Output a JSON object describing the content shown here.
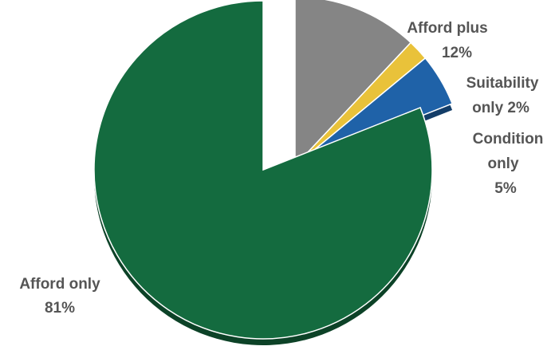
{
  "chart_data": {
    "type": "pie",
    "title": "",
    "slices": [
      {
        "name": "Afford only",
        "value": 81,
        "color": "#146b3f",
        "label_lines": [
          "Afford only",
          "81%"
        ]
      },
      {
        "name": "Afford plus",
        "value": 12,
        "color": "#858585",
        "label_lines": [
          "Afford plus",
          "12%"
        ]
      },
      {
        "name": "Suitability only",
        "value": 2,
        "color": "#e9c23a",
        "label_lines": [
          "Suitability",
          "only 2%"
        ]
      },
      {
        "name": "Condition only",
        "value": 5,
        "color": "#1f62a8",
        "label_lines": [
          "Condition",
          "only",
          "5%"
        ]
      }
    ],
    "exploded": [
      "Afford plus",
      "Suitability only",
      "Condition only"
    ],
    "style": "3d",
    "legend": "none"
  }
}
